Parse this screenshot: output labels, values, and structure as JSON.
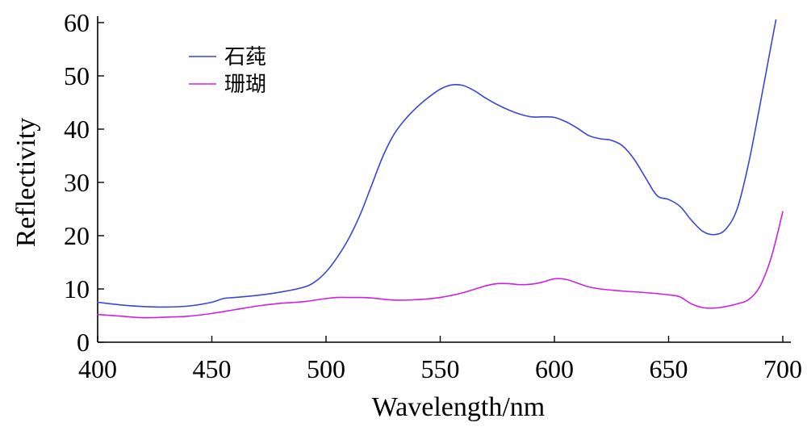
{
  "chart_data": {
    "type": "line",
    "xlabel": "Wavelength/nm",
    "ylabel": "Reflectivity",
    "xlim": [
      400,
      700
    ],
    "ylim": [
      0,
      60
    ],
    "xticks": [
      400,
      450,
      500,
      550,
      600,
      650,
      700
    ],
    "yticks": [
      0,
      10,
      20,
      30,
      40,
      50,
      60
    ],
    "grid": false,
    "legend_position": "top-left",
    "series": [
      {
        "name": "石莼",
        "color": "#3b45d6",
        "x": [
          400,
          410,
          420,
          430,
          440,
          450,
          455,
          460,
          470,
          480,
          490,
          495,
          500,
          505,
          510,
          515,
          520,
          525,
          530,
          535,
          540,
          545,
          550,
          555,
          560,
          565,
          570,
          575,
          580,
          585,
          590,
          595,
          600,
          605,
          610,
          615,
          620,
          625,
          630,
          635,
          640,
          645,
          650,
          655,
          660,
          665,
          670,
          675,
          680,
          685,
          690,
          695,
          697
        ],
        "values": [
          7.5,
          7.0,
          6.7,
          6.6,
          6.8,
          7.5,
          8.2,
          8.4,
          8.8,
          9.4,
          10.3,
          11.3,
          13.2,
          16.0,
          19.5,
          24.0,
          29.5,
          35.0,
          39.2,
          42.0,
          44.2,
          46.0,
          47.5,
          48.3,
          48.2,
          47.2,
          45.8,
          44.6,
          43.6,
          42.8,
          42.3,
          42.3,
          42.2,
          41.4,
          40.2,
          38.8,
          38.2,
          37.9,
          36.8,
          34.3,
          30.8,
          27.5,
          26.8,
          25.5,
          22.9,
          20.8,
          20.2,
          21.2,
          25.0,
          33.5,
          44.5,
          56.0,
          60.5
        ]
      },
      {
        "name": "珊瑚",
        "color": "#cc22dd",
        "x": [
          400,
          410,
          420,
          430,
          440,
          450,
          460,
          470,
          480,
          490,
          500,
          505,
          510,
          515,
          520,
          530,
          540,
          550,
          560,
          570,
          575,
          580,
          585,
          590,
          595,
          600,
          605,
          610,
          615,
          620,
          630,
          640,
          650,
          655,
          660,
          665,
          670,
          675,
          680,
          685,
          690,
          695,
          700
        ],
        "values": [
          5.2,
          4.9,
          4.6,
          4.7,
          4.9,
          5.4,
          6.1,
          6.8,
          7.3,
          7.6,
          8.2,
          8.4,
          8.4,
          8.4,
          8.3,
          7.9,
          8.0,
          8.4,
          9.3,
          10.6,
          11.0,
          11.0,
          10.8,
          10.9,
          11.3,
          11.9,
          11.8,
          11.1,
          10.4,
          10.0,
          9.6,
          9.3,
          8.9,
          8.5,
          7.2,
          6.5,
          6.4,
          6.7,
          7.2,
          8.0,
          10.5,
          16.0,
          24.5
        ]
      }
    ]
  }
}
